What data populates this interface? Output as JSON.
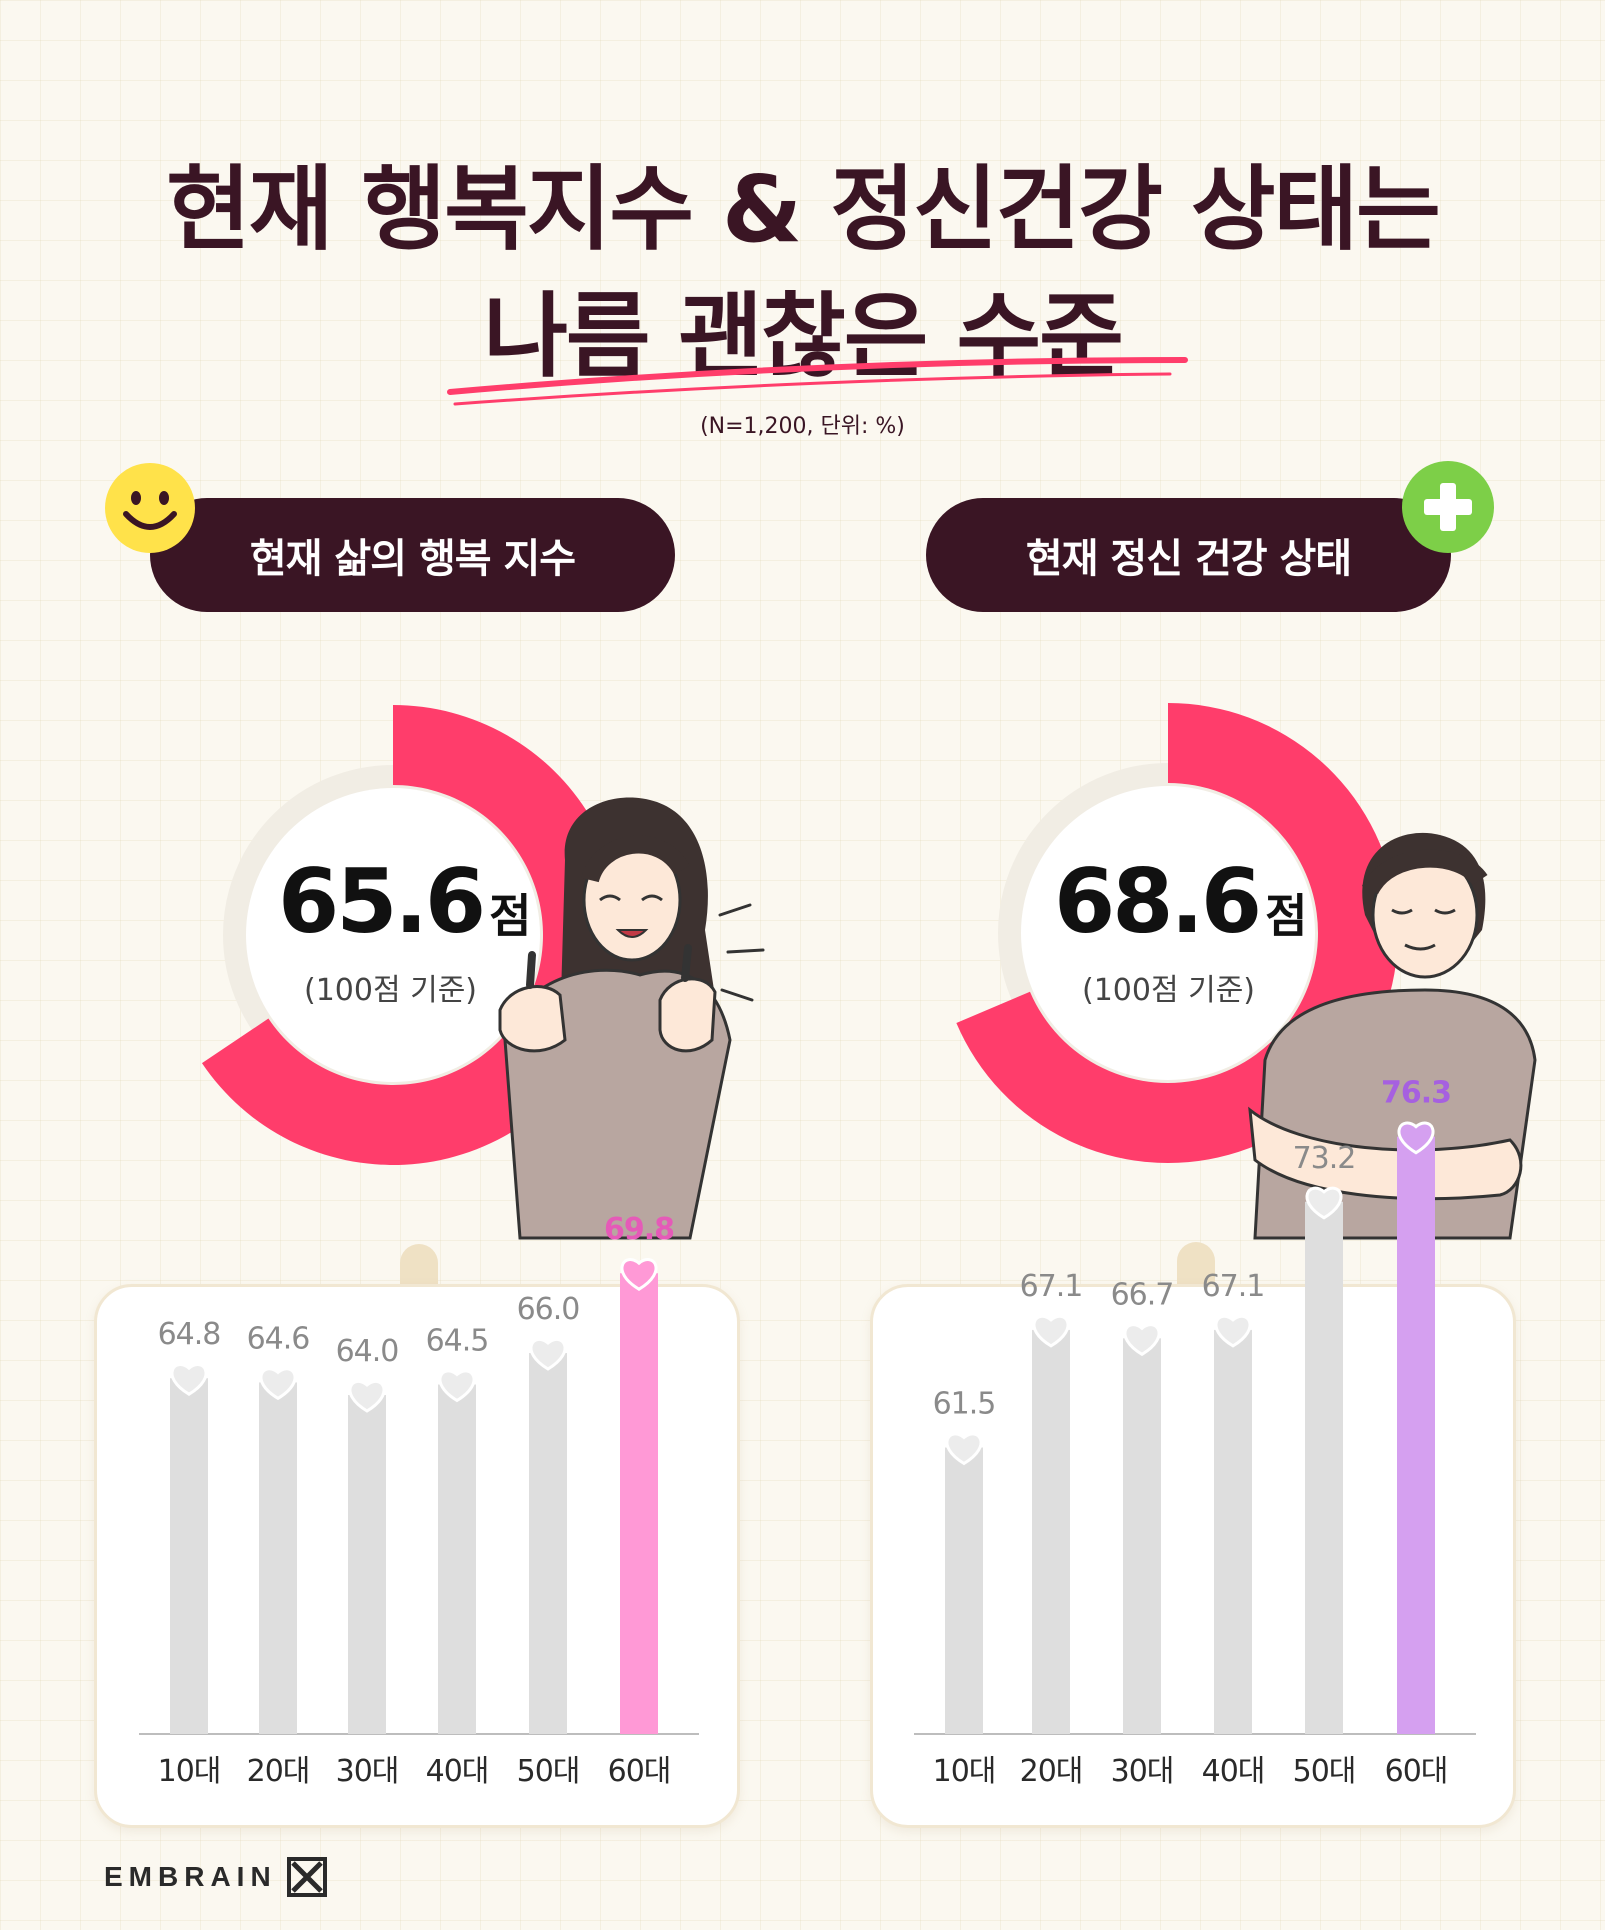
{
  "title": {
    "line1": "현재 행복지수 & 정신건강 상태는",
    "line2": "나름 괜찮은 수준"
  },
  "note": "(N=1,200, 단위: %)",
  "colors": {
    "dark": "#3a1524",
    "accent_red": "#ff3d6b",
    "track": "#f1ede4",
    "pink": "#ff99d6",
    "pink_text": "#e55ab8",
    "purple": "#d5a0f0",
    "purple_text": "#a660e0",
    "grey_bar": "#dedede",
    "grey_text": "#8a8a8a"
  },
  "left_panel": {
    "heading": "현재 삶의 행복 지수",
    "badge_icon": "smiley-icon",
    "score": "65.6",
    "score_unit": "점",
    "basis": "(100점 기준)"
  },
  "right_panel": {
    "heading": "현재 정신 건강 상태",
    "badge_icon": "plus-icon",
    "score": "68.6",
    "score_unit": "점",
    "basis": "(100점 기준)"
  },
  "chart_data": [
    {
      "type": "bar",
      "categories": [
        "10대",
        "20대",
        "30대",
        "40대",
        "50대",
        "60대"
      ],
      "values": [
        64.8,
        64.6,
        64.0,
        64.5,
        66.0,
        69.8
      ],
      "value_labels": [
        "64.8",
        "64.6",
        "64.0",
        "64.5",
        "66.0",
        "69.8"
      ],
      "highlight_index": 5,
      "highlight_color": "#ff99d6",
      "highlight_text_color": "#e55ab8"
    },
    {
      "type": "bar",
      "categories": [
        "10대",
        "20대",
        "30대",
        "40대",
        "50대",
        "60대"
      ],
      "values": [
        61.5,
        67.1,
        66.7,
        67.1,
        73.2,
        76.3
      ],
      "value_labels": [
        "61.5",
        "67.1",
        "66.7",
        "67.1",
        "73.2",
        "76.3"
      ],
      "highlight_index": 5,
      "highlight_color": "#d5a0f0",
      "highlight_text_color": "#a660e0"
    }
  ],
  "brand": "EMBRAIN"
}
